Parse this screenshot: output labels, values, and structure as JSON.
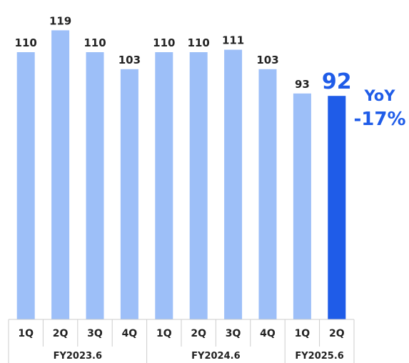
{
  "chart_data": {
    "type": "bar",
    "categories": [
      "1Q",
      "2Q",
      "3Q",
      "4Q",
      "1Q",
      "2Q",
      "3Q",
      "4Q",
      "1Q",
      "2Q"
    ],
    "groups": [
      {
        "label": "FY2023.6",
        "span": 4
      },
      {
        "label": "FY2024.6",
        "span": 4
      },
      {
        "label": "FY2025.6",
        "span": 2
      }
    ],
    "values": [
      110,
      119,
      110,
      103,
      110,
      110,
      111,
      103,
      93,
      92
    ],
    "highlight_index": 9,
    "ylim": [
      0,
      122
    ],
    "grid": false,
    "annotation": {
      "line1": "YoY",
      "line2": "-17%"
    }
  },
  "colors": {
    "bar": "#9DBFF8",
    "highlight": "#1F5CE8",
    "annotation": "#1F5CE8",
    "axis_border": "#cccccc"
  }
}
